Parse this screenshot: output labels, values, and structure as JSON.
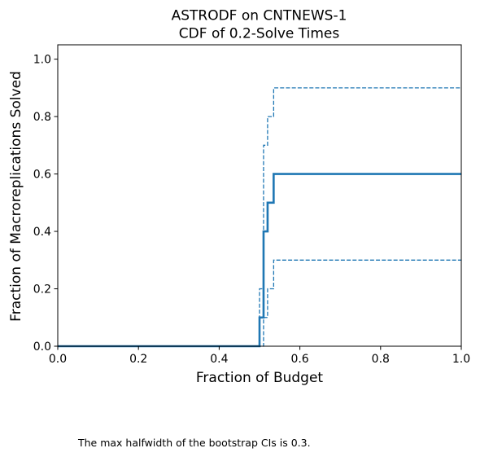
{
  "footnote": "The max halfwidth of the bootstrap CIs is 0.3.",
  "chart_data": {
    "type": "line",
    "title": "ASTRODF on CNTNEWS-1",
    "subtitle": "CDF of 0.2-Solve Times",
    "xlabel": "Fraction of Budget",
    "ylabel": "Fraction of Macroreplications Solved",
    "xlim": [
      0.0,
      1.0
    ],
    "ylim": [
      0.0,
      1.05
    ],
    "xticks": [
      0.0,
      0.2,
      0.4,
      0.6,
      0.8,
      1.0
    ],
    "yticks": [
      0.0,
      0.2,
      0.4,
      0.6,
      0.8,
      1.0
    ],
    "xtick_labels": [
      "0.0",
      "0.2",
      "0.4",
      "0.6",
      "0.8",
      "1.0"
    ],
    "ytick_labels": [
      "0.0",
      "0.2",
      "0.4",
      "0.6",
      "0.8",
      "1.0"
    ],
    "grid": false,
    "color": "#1f77b4",
    "series": [
      {
        "role": "estimate",
        "style": "solid",
        "x": [
          0.0,
          0.5,
          0.5,
          0.51,
          0.51,
          0.52,
          0.52,
          0.535,
          0.535,
          0.545,
          0.545,
          1.0
        ],
        "y": [
          0.0,
          0.0,
          0.1,
          0.1,
          0.4,
          0.4,
          0.5,
          0.5,
          0.6,
          0.6,
          0.6,
          0.6
        ]
      },
      {
        "role": "upper-ci",
        "style": "dashed",
        "x": [
          0.0,
          0.5,
          0.5,
          0.51,
          0.51,
          0.52,
          0.52,
          0.535,
          0.535,
          0.545,
          0.545,
          1.0
        ],
        "y": [
          0.0,
          0.0,
          0.2,
          0.2,
          0.7,
          0.7,
          0.8,
          0.8,
          0.9,
          0.9,
          0.9,
          0.9
        ]
      },
      {
        "role": "lower-ci",
        "style": "dashed",
        "x": [
          0.0,
          0.51,
          0.51,
          0.52,
          0.52,
          0.535,
          0.535,
          0.545,
          0.545,
          1.0
        ],
        "y": [
          0.0,
          0.0,
          0.1,
          0.1,
          0.2,
          0.2,
          0.3,
          0.3,
          0.3,
          0.3
        ]
      }
    ]
  }
}
